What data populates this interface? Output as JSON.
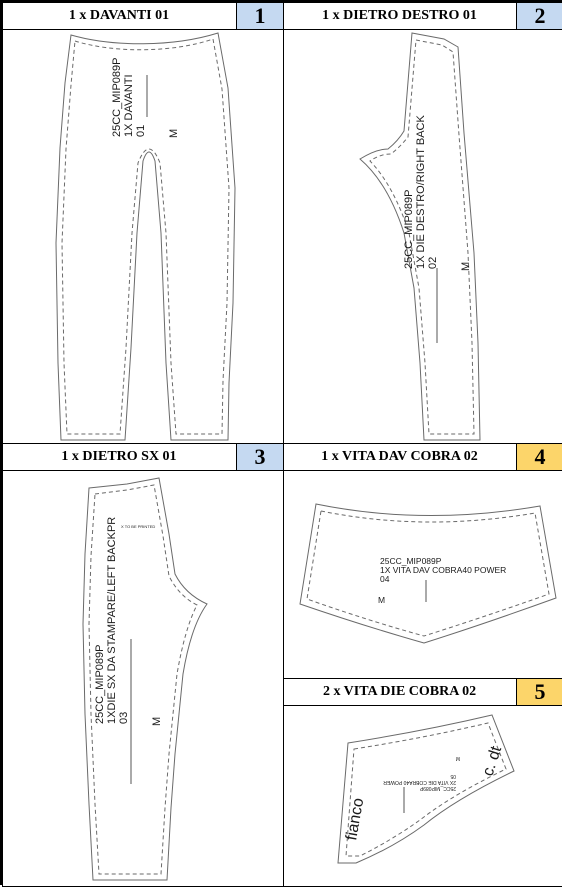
{
  "pieces": [
    {
      "title": "1 x DAVANTI 01",
      "number": "1",
      "badge_color": "#c5d9f1",
      "label_lines": [
        "25CC_MIP089P",
        "1X DAVANTI",
        "01"
      ],
      "size": "M"
    },
    {
      "title": "1 x DIETRO DESTRO 01",
      "number": "2",
      "badge_color": "#c5d9f1",
      "label_lines": [
        "25CC_MIP089P",
        "1X DIE DESTRO/RIGHT BACK",
        "02"
      ],
      "size": "M"
    },
    {
      "title": "1 x DIETRO SX 01",
      "number": "3",
      "badge_color": "#c5d9f1",
      "label_lines": [
        "25CC_MIP089P",
        "1XDIE SX DA STAMPARE/LEFT BACKPR",
        "03"
      ],
      "side_note": "X TO BE PRINTED",
      "size": "M"
    },
    {
      "title": "1 x VITA DAV COBRA 02",
      "number": "4",
      "badge_color": "#fcd56a",
      "label_lines": [
        "25CC_MIP089P",
        "1X VITA DAV COBRA40 POWER",
        "04"
      ],
      "size": "M"
    },
    {
      "title": "2 x VITA DIE COBRA 02",
      "number": "5",
      "badge_color": "#fcd56a",
      "label_lines": [
        "25CC_MIP089P",
        "2X VITA DIE COBRA40 POWER",
        "05"
      ],
      "size": "M",
      "side_left": "fianco",
      "side_right": "c. dt"
    }
  ]
}
